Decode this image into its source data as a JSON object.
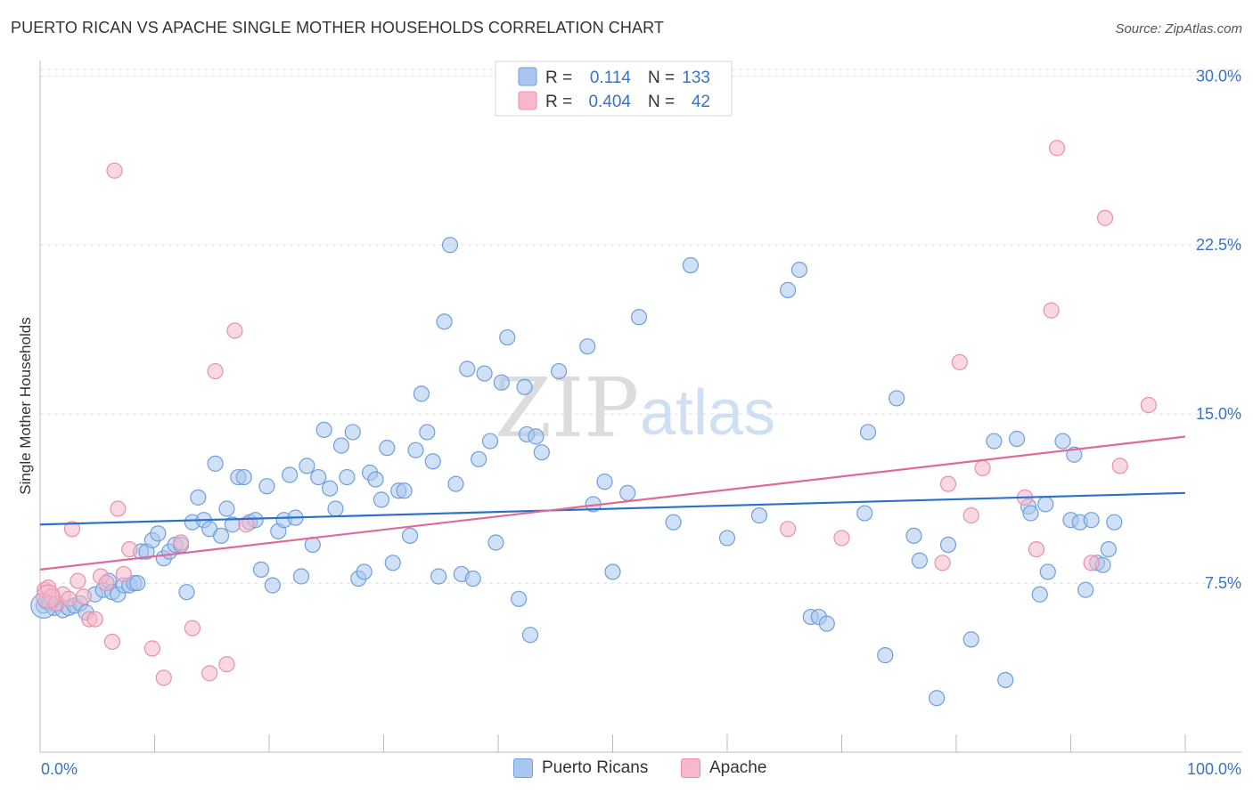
{
  "title": "PUERTO RICAN VS APACHE SINGLE MOTHER HOUSEHOLDS CORRELATION CHART",
  "source": "Source: ZipAtlas.com",
  "watermark": {
    "zip": "ZIP",
    "atlas": "atlas"
  },
  "legend_top": {
    "rows": [
      {
        "r_label": "R =",
        "r_value": "0.114",
        "n_label": "N =",
        "n_value": "133"
      },
      {
        "r_label": "R =",
        "r_value": "0.404",
        "n_label": "N =",
        "n_value": "42"
      }
    ]
  },
  "legend_bottom": [
    "Puerto Ricans",
    "Apache"
  ],
  "colors": {
    "blue_fill": "#a9c6ee",
    "blue_stroke": "#6f9fdc",
    "blue_line": "#2a70cc",
    "pink_fill": "#f6b8ca",
    "pink_stroke": "#e890ab",
    "pink_line": "#e0699a",
    "tick_text": "#3a72c4"
  },
  "chart_data": {
    "type": "scatter",
    "title": "PUERTO RICAN VS APACHE SINGLE MOTHER HOUSEHOLDS CORRELATION CHART",
    "xlabel": "",
    "ylabel": "Single Mother Households",
    "xlim": [
      0,
      100
    ],
    "ylim": [
      0,
      31
    ],
    "x_tick_labels": [
      "0.0%",
      "100.0%"
    ],
    "y_ticks": [
      7.5,
      15.0,
      22.5,
      30.0
    ],
    "y_tick_labels": [
      "7.5%",
      "15.0%",
      "22.5%",
      "30.0%"
    ],
    "grid": true,
    "legend_position": "top-center",
    "series": [
      {
        "name": "Puerto Ricans",
        "r": 0.114,
        "n": 133,
        "trend": {
          "x": [
            0,
            100
          ],
          "y": [
            10.1,
            11.5
          ]
        },
        "points": [
          [
            0.3,
            6.5
          ],
          [
            0.5,
            6.7
          ],
          [
            0.8,
            6.6
          ],
          [
            1.2,
            6.4
          ],
          [
            1.5,
            6.6
          ],
          [
            2.0,
            6.3
          ],
          [
            2.5,
            6.4
          ],
          [
            3.0,
            6.5
          ],
          [
            3.5,
            6.6
          ],
          [
            4.0,
            6.2
          ],
          [
            4.8,
            7.0
          ],
          [
            5.5,
            7.2
          ],
          [
            6.0,
            7.6
          ],
          [
            6.3,
            7.1
          ],
          [
            6.8,
            7.0
          ],
          [
            7.3,
            7.4
          ],
          [
            7.8,
            7.4
          ],
          [
            8.2,
            7.5
          ],
          [
            8.5,
            7.5
          ],
          [
            8.8,
            8.9
          ],
          [
            9.3,
            8.9
          ],
          [
            9.8,
            9.4
          ],
          [
            10.3,
            9.7
          ],
          [
            10.8,
            8.6
          ],
          [
            11.3,
            8.9
          ],
          [
            11.8,
            9.2
          ],
          [
            12.3,
            9.2
          ],
          [
            12.8,
            7.1
          ],
          [
            13.3,
            10.2
          ],
          [
            13.8,
            11.3
          ],
          [
            14.3,
            10.3
          ],
          [
            14.8,
            9.9
          ],
          [
            15.3,
            12.8
          ],
          [
            15.8,
            9.6
          ],
          [
            16.3,
            10.8
          ],
          [
            16.8,
            10.1
          ],
          [
            17.3,
            12.2
          ],
          [
            17.8,
            12.2
          ],
          [
            18.3,
            10.2
          ],
          [
            18.8,
            10.3
          ],
          [
            19.3,
            8.1
          ],
          [
            19.8,
            11.8
          ],
          [
            20.3,
            7.4
          ],
          [
            20.8,
            9.8
          ],
          [
            21.3,
            10.3
          ],
          [
            21.8,
            12.3
          ],
          [
            22.3,
            10.4
          ],
          [
            22.8,
            7.8
          ],
          [
            23.3,
            12.7
          ],
          [
            23.8,
            9.2
          ],
          [
            24.3,
            12.2
          ],
          [
            24.8,
            14.3
          ],
          [
            25.3,
            11.7
          ],
          [
            25.8,
            10.8
          ],
          [
            26.3,
            13.6
          ],
          [
            26.8,
            12.2
          ],
          [
            27.3,
            14.2
          ],
          [
            27.8,
            7.7
          ],
          [
            28.3,
            8.0
          ],
          [
            28.8,
            12.4
          ],
          [
            29.3,
            12.1
          ],
          [
            29.8,
            11.2
          ],
          [
            30.3,
            13.5
          ],
          [
            30.8,
            8.4
          ],
          [
            31.3,
            11.6
          ],
          [
            31.8,
            11.6
          ],
          [
            32.3,
            9.6
          ],
          [
            32.8,
            13.4
          ],
          [
            33.3,
            15.9
          ],
          [
            33.8,
            14.2
          ],
          [
            34.3,
            12.9
          ],
          [
            34.8,
            7.8
          ],
          [
            35.3,
            19.1
          ],
          [
            35.8,
            22.5
          ],
          [
            36.3,
            11.9
          ],
          [
            36.8,
            7.9
          ],
          [
            37.3,
            17.0
          ],
          [
            37.8,
            7.7
          ],
          [
            38.3,
            13.0
          ],
          [
            38.8,
            16.8
          ],
          [
            39.3,
            13.8
          ],
          [
            39.8,
            9.3
          ],
          [
            40.3,
            16.4
          ],
          [
            40.8,
            18.4
          ],
          [
            41.8,
            6.8
          ],
          [
            42.3,
            16.2
          ],
          [
            42.5,
            14.1
          ],
          [
            42.8,
            5.2
          ],
          [
            43.3,
            14.0
          ],
          [
            43.8,
            13.3
          ],
          [
            45.3,
            16.9
          ],
          [
            47.8,
            18.0
          ],
          [
            48.3,
            11.0
          ],
          [
            49.3,
            12.0
          ],
          [
            50.0,
            8.0
          ],
          [
            51.3,
            11.5
          ],
          [
            52.3,
            19.3
          ],
          [
            55.3,
            10.2
          ],
          [
            56.8,
            21.6
          ],
          [
            60.0,
            9.5
          ],
          [
            62.8,
            10.5
          ],
          [
            65.3,
            20.5
          ],
          [
            66.3,
            21.4
          ],
          [
            67.3,
            6.0
          ],
          [
            68.0,
            6.0
          ],
          [
            68.7,
            5.7
          ],
          [
            72.0,
            10.6
          ],
          [
            72.3,
            14.2
          ],
          [
            73.8,
            4.3
          ],
          [
            74.8,
            15.7
          ],
          [
            76.3,
            9.6
          ],
          [
            76.8,
            8.5
          ],
          [
            78.3,
            2.4
          ],
          [
            79.3,
            9.2
          ],
          [
            81.3,
            5.0
          ],
          [
            83.3,
            13.8
          ],
          [
            84.3,
            3.2
          ],
          [
            85.3,
            13.9
          ],
          [
            86.3,
            10.9
          ],
          [
            86.5,
            10.6
          ],
          [
            87.3,
            7.0
          ],
          [
            87.8,
            11.0
          ],
          [
            88.0,
            8.0
          ],
          [
            89.3,
            13.8
          ],
          [
            90.0,
            10.3
          ],
          [
            90.3,
            13.2
          ],
          [
            90.8,
            10.2
          ],
          [
            91.3,
            7.2
          ],
          [
            91.8,
            10.3
          ],
          [
            92.3,
            8.4
          ],
          [
            92.8,
            8.3
          ],
          [
            93.3,
            9.0
          ],
          [
            93.8,
            10.2
          ]
        ]
      },
      {
        "name": "Apache",
        "r": 0.404,
        "n": 42,
        "trend": {
          "x": [
            0,
            100
          ],
          "y": [
            8.1,
            14.0
          ]
        },
        "points": [
          [
            0.4,
            7.2
          ],
          [
            0.7,
            7.3
          ],
          [
            1.0,
            6.9
          ],
          [
            1.4,
            6.6
          ],
          [
            2.0,
            7.0
          ],
          [
            2.5,
            6.8
          ],
          [
            2.8,
            9.9
          ],
          [
            3.3,
            7.6
          ],
          [
            3.8,
            6.9
          ],
          [
            4.3,
            5.9
          ],
          [
            4.8,
            5.9
          ],
          [
            5.3,
            7.8
          ],
          [
            5.8,
            7.5
          ],
          [
            6.3,
            4.9
          ],
          [
            6.5,
            25.8
          ],
          [
            6.8,
            10.8
          ],
          [
            7.3,
            7.9
          ],
          [
            7.8,
            9.0
          ],
          [
            9.8,
            4.6
          ],
          [
            10.8,
            3.3
          ],
          [
            12.3,
            9.3
          ],
          [
            13.3,
            5.5
          ],
          [
            14.8,
            3.5
          ],
          [
            15.3,
            16.9
          ],
          [
            16.3,
            3.9
          ],
          [
            17.0,
            18.7
          ],
          [
            18.0,
            10.1
          ],
          [
            65.3,
            9.9
          ],
          [
            70.0,
            9.5
          ],
          [
            78.8,
            8.4
          ],
          [
            79.3,
            11.9
          ],
          [
            80.3,
            17.3
          ],
          [
            81.3,
            10.5
          ],
          [
            82.3,
            12.6
          ],
          [
            86.0,
            11.3
          ],
          [
            87.0,
            9.0
          ],
          [
            88.3,
            19.6
          ],
          [
            88.8,
            26.8
          ],
          [
            91.8,
            8.4
          ],
          [
            93.0,
            23.7
          ],
          [
            94.3,
            12.7
          ],
          [
            96.8,
            15.4
          ]
        ]
      }
    ]
  }
}
